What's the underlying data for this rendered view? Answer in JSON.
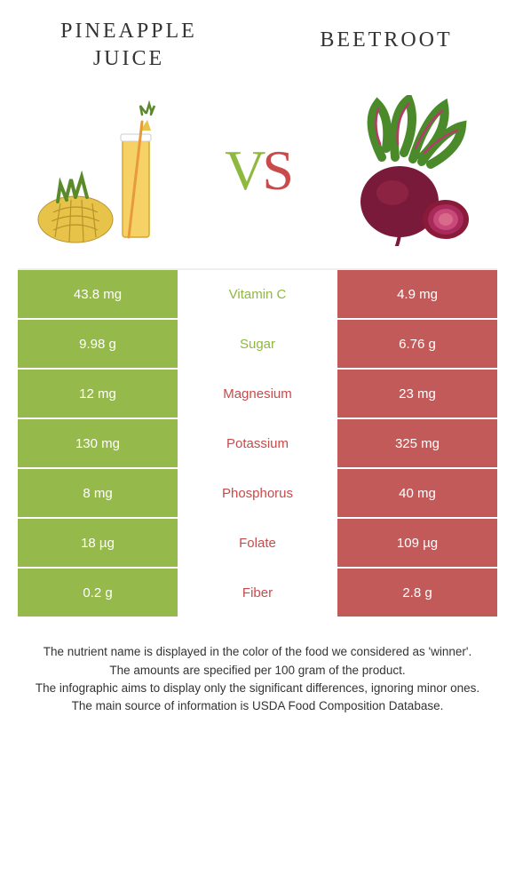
{
  "colors": {
    "left": "#95b94a",
    "right": "#c25a5a",
    "left_label": "#8fb93e",
    "right_label": "#c94a4a"
  },
  "header": {
    "left_title": "PINEAPPLE JUICE",
    "right_title": "Beetroot",
    "vs_v": "V",
    "vs_s": "S"
  },
  "rows": [
    {
      "left": "43.8 mg",
      "label": "Vitamin C",
      "right": "4.9 mg",
      "winner": "left"
    },
    {
      "left": "9.98 g",
      "label": "Sugar",
      "right": "6.76 g",
      "winner": "left"
    },
    {
      "left": "12 mg",
      "label": "Magnesium",
      "right": "23 mg",
      "winner": "right"
    },
    {
      "left": "130 mg",
      "label": "Potassium",
      "right": "325 mg",
      "winner": "right"
    },
    {
      "left": "8 mg",
      "label": "Phosphorus",
      "right": "40 mg",
      "winner": "right"
    },
    {
      "left": "18 µg",
      "label": "Folate",
      "right": "109 µg",
      "winner": "right"
    },
    {
      "left": "0.2 g",
      "label": "Fiber",
      "right": "2.8 g",
      "winner": "right"
    }
  ],
  "footer": {
    "line1": "The nutrient name is displayed in the color of the food we considered as 'winner'.",
    "line2": "The amounts are specified per 100 gram of the product.",
    "line3": "The infographic aims to display only the significant differences, ignoring minor ones.",
    "line4": "The main source of information is USDA Food Composition Database."
  }
}
